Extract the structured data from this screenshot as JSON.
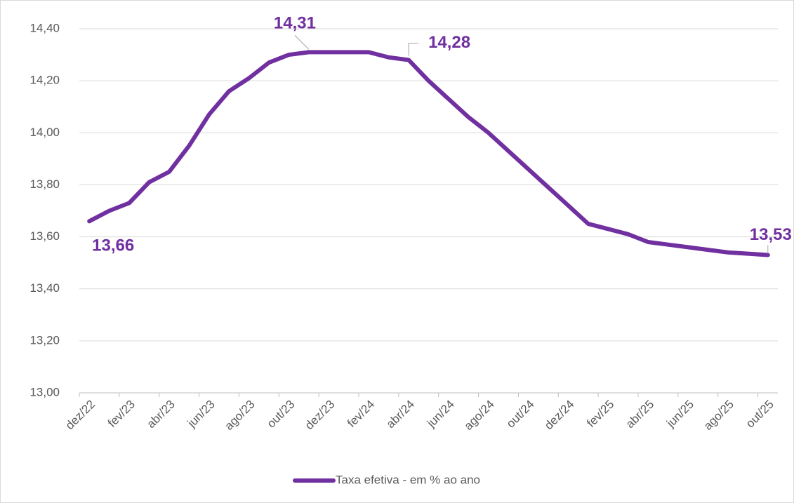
{
  "chart_data": {
    "type": "line",
    "categories": [
      "dez/22",
      null,
      "fev/23",
      null,
      "abr/23",
      null,
      "jun/23",
      null,
      "ago/23",
      null,
      "out/23",
      null,
      "dez/23",
      null,
      "fev/24",
      null,
      "abr/24",
      null,
      "jun/24",
      null,
      "ago/24",
      null,
      "out/24",
      null,
      "dez/24",
      null,
      "fev/25",
      null,
      "abr/25",
      null,
      "jun/25",
      null,
      "ago/25",
      null,
      "out/25"
    ],
    "series": [
      {
        "name": "Taxa efetiva - em % ao ano",
        "color": "#7030a0",
        "values": [
          13.66,
          13.7,
          13.73,
          13.81,
          13.85,
          13.95,
          14.07,
          14.16,
          14.21,
          14.27,
          14.3,
          14.31,
          14.31,
          14.31,
          14.31,
          14.29,
          14.28,
          14.2,
          14.13,
          14.06,
          14.0,
          13.93,
          13.86,
          13.79,
          13.72,
          13.65,
          13.63,
          13.61,
          13.58,
          13.57,
          13.56,
          13.55,
          13.54,
          13.535,
          13.53
        ],
        "value_labels": [
          "13,66",
          null,
          null,
          null,
          null,
          null,
          null,
          null,
          null,
          null,
          null,
          "14,31",
          null,
          null,
          null,
          null,
          "14,28",
          null,
          null,
          null,
          null,
          null,
          null,
          null,
          null,
          null,
          null,
          null,
          null,
          null,
          null,
          null,
          null,
          null,
          "13,53"
        ]
      }
    ],
    "ylim": [
      13.0,
      14.4
    ],
    "yticks": [
      {
        "value": 13.0,
        "label": "13,00"
      },
      {
        "value": 13.2,
        "label": "13,20"
      },
      {
        "value": 13.4,
        "label": "13,40"
      },
      {
        "value": 13.6,
        "label": "13,60"
      },
      {
        "value": 13.8,
        "label": "13,80"
      },
      {
        "value": 14.0,
        "label": "14,00"
      },
      {
        "value": 14.2,
        "label": "14,20"
      },
      {
        "value": 14.4,
        "label": "14,40"
      }
    ],
    "grid": true,
    "legend": "bottom"
  }
}
